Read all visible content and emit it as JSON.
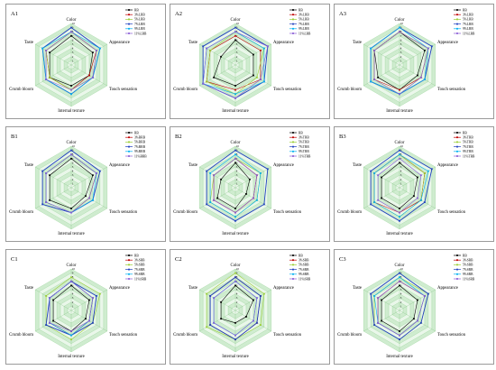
{
  "figure": {
    "axes": [
      "Color",
      "Appearance",
      "Touch sensation",
      "Internal texture",
      "Crumb bloom",
      "Taste"
    ],
    "ticks": [
      "1",
      "2",
      "3",
      "4",
      "5",
      "6",
      "7",
      "8",
      "9",
      "10"
    ],
    "series_colors": [
      "#000000",
      "#c00000",
      "#9acd32",
      "#1f3fbf",
      "#00b0f0",
      "#8a5cd6"
    ]
  },
  "chart_data": [
    {
      "type": "radar",
      "label": "A1",
      "r_range": [
        0,
        10
      ],
      "axes": [
        "Color",
        "Appearance",
        "Touch sensation",
        "Internal texture",
        "Crumb bloom",
        "Taste"
      ],
      "series": [
        {
          "name": "RB",
          "values": [
            7,
            6,
            5,
            5,
            6,
            6
          ]
        },
        {
          "name": "3%LRB",
          "values": [
            8,
            7,
            5,
            6,
            6,
            7
          ]
        },
        {
          "name": "5%LRB",
          "values": [
            8,
            7,
            6,
            6,
            6,
            7
          ]
        },
        {
          "name": "7%LRB",
          "values": [
            9,
            8,
            6,
            7,
            7,
            8
          ]
        },
        {
          "name": "9%LRB",
          "values": [
            8,
            8,
            6,
            7,
            7,
            8
          ]
        },
        {
          "name": "11%LRB",
          "values": [
            8,
            7,
            6,
            6,
            7,
            7
          ]
        }
      ]
    },
    {
      "type": "radar",
      "label": "A2",
      "r_range": [
        0,
        10
      ],
      "axes": [
        "Color",
        "Appearance",
        "Touch sensation",
        "Internal texture",
        "Crumb bloom",
        "Taste"
      ],
      "series": [
        {
          "name": "RB",
          "values": [
            6,
            5,
            5,
            5,
            6,
            4
          ]
        },
        {
          "name": "3%LRB",
          "values": [
            7,
            7,
            7,
            6,
            8,
            7
          ]
        },
        {
          "name": "5%LRB",
          "values": [
            8,
            8,
            6,
            7,
            8,
            7
          ]
        },
        {
          "name": "7%LRB",
          "values": [
            9,
            9,
            8,
            8,
            9,
            9
          ]
        },
        {
          "name": "9%LRB",
          "values": [
            8,
            8,
            8,
            7,
            9,
            8
          ]
        },
        {
          "name": "11%LRB",
          "values": [
            8,
            9,
            7,
            8,
            9,
            8
          ]
        }
      ]
    },
    {
      "type": "radar",
      "label": "A3",
      "r_range": [
        0,
        10
      ],
      "axes": [
        "Color",
        "Appearance",
        "Touch sensation",
        "Internal texture",
        "Crumb bloom",
        "Taste"
      ],
      "series": [
        {
          "name": "RB",
          "values": [
            8,
            7,
            5,
            6,
            6,
            7
          ]
        },
        {
          "name": "3%LRB",
          "values": [
            8,
            8,
            6,
            6,
            7,
            7
          ]
        },
        {
          "name": "5%LRB",
          "values": [
            8,
            8,
            6,
            7,
            7,
            7
          ]
        },
        {
          "name": "7%LRB",
          "values": [
            9,
            9,
            7,
            7,
            8,
            8
          ]
        },
        {
          "name": "9%LRB",
          "values": [
            9,
            8,
            7,
            7,
            8,
            8
          ]
        },
        {
          "name": "11%LRB",
          "values": [
            8,
            8,
            6,
            7,
            7,
            7
          ]
        }
      ]
    },
    {
      "type": "radar",
      "label": "B1",
      "r_range": [
        0,
        10
      ],
      "axes": [
        "Color",
        "Appearance",
        "Touch sensation",
        "Internal texture",
        "Crumb bloom",
        "Taste"
      ],
      "series": [
        {
          "name": "RB",
          "values": [
            7,
            6,
            4,
            5,
            6,
            6
          ]
        },
        {
          "name": "3%BRB",
          "values": [
            8,
            7,
            5,
            6,
            7,
            7
          ]
        },
        {
          "name": "5%BRB",
          "values": [
            8,
            7,
            5,
            6,
            7,
            7
          ]
        },
        {
          "name": "7%BRB",
          "values": [
            9,
            8,
            6,
            6,
            8,
            8
          ]
        },
        {
          "name": "9%BRB",
          "values": [
            8,
            7,
            6,
            6,
            7,
            7
          ]
        },
        {
          "name": "11%BRB",
          "values": [
            8,
            7,
            5,
            6,
            7,
            7
          ]
        }
      ]
    },
    {
      "type": "radar",
      "label": "B2",
      "r_range": [
        0,
        10
      ],
      "axes": [
        "Color",
        "Appearance",
        "Touch sensation",
        "Internal texture",
        "Crumb bloom",
        "Taste"
      ],
      "series": [
        {
          "name": "RB",
          "values": [
            6,
            4,
            3,
            5,
            5,
            4
          ]
        },
        {
          "name": "3%TRB",
          "values": [
            7,
            6,
            5,
            6,
            6,
            6
          ]
        },
        {
          "name": "5%TRB",
          "values": [
            7,
            7,
            6,
            7,
            7,
            6
          ]
        },
        {
          "name": "7%TRB",
          "values": [
            9,
            9,
            8,
            8,
            8,
            8
          ]
        },
        {
          "name": "9%TRB",
          "values": [
            8,
            7,
            6,
            7,
            7,
            7
          ]
        },
        {
          "name": "11%TRB",
          "values": [
            7,
            6,
            5,
            6,
            6,
            6
          ]
        }
      ]
    },
    {
      "type": "radar",
      "label": "B3",
      "r_range": [
        0,
        10
      ],
      "axes": [
        "Color",
        "Appearance",
        "Touch sensation",
        "Internal texture",
        "Crumb bloom",
        "Taste"
      ],
      "series": [
        {
          "name": "RB",
          "values": [
            6,
            5,
            4,
            5,
            5,
            5
          ]
        },
        {
          "name": "3%TRB",
          "values": [
            8,
            7,
            6,
            6,
            7,
            7
          ]
        },
        {
          "name": "5%TRB",
          "values": [
            8,
            7,
            6,
            7,
            7,
            7
          ]
        },
        {
          "name": "7%TRB",
          "values": [
            9,
            9,
            7,
            8,
            8,
            8
          ]
        },
        {
          "name": "9%TRB",
          "values": [
            8,
            8,
            6,
            7,
            7,
            7
          ]
        },
        {
          "name": "11%TRB",
          "values": [
            7,
            6,
            5,
            6,
            6,
            6
          ]
        }
      ]
    },
    {
      "type": "radar",
      "label": "C1",
      "r_range": [
        0,
        10
      ],
      "axes": [
        "Color",
        "Appearance",
        "Touch sensation",
        "Internal texture",
        "Crumb bloom",
        "Taste"
      ],
      "series": [
        {
          "name": "RB",
          "values": [
            6,
            5,
            4,
            5,
            5,
            5
          ]
        },
        {
          "name": "3%SRB",
          "values": [
            7,
            6,
            5,
            6,
            6,
            6
          ]
        },
        {
          "name": "5%SRB",
          "values": [
            8,
            8,
            6,
            7,
            7,
            7
          ]
        },
        {
          "name": "7%SRB",
          "values": [
            7,
            7,
            6,
            6,
            7,
            6
          ]
        },
        {
          "name": "9%SRB",
          "values": [
            7,
            6,
            5,
            6,
            6,
            6
          ]
        },
        {
          "name": "11%SRB",
          "values": [
            7,
            6,
            5,
            5,
            6,
            6
          ]
        }
      ]
    },
    {
      "type": "radar",
      "label": "C2",
      "r_range": [
        0,
        10
      ],
      "axes": [
        "Color",
        "Appearance",
        "Touch sensation",
        "Internal texture",
        "Crumb bloom",
        "Taste"
      ],
      "series": [
        {
          "name": "RB",
          "values": [
            6,
            5,
            3,
            3,
            4,
            4
          ]
        },
        {
          "name": "3%SRB",
          "values": [
            8,
            7,
            6,
            7,
            7,
            7
          ]
        },
        {
          "name": "5%SRB",
          "values": [
            9,
            8,
            7,
            7,
            8,
            8
          ]
        },
        {
          "name": "7%SRB",
          "values": [
            8,
            7,
            6,
            7,
            7,
            7
          ]
        },
        {
          "name": "9%SRB",
          "values": [
            7,
            6,
            5,
            6,
            6,
            6
          ]
        },
        {
          "name": "11%SRB",
          "values": [
            7,
            6,
            5,
            6,
            6,
            6
          ]
        }
      ]
    },
    {
      "type": "radar",
      "label": "C3",
      "r_range": [
        0,
        10
      ],
      "axes": [
        "Color",
        "Appearance",
        "Touch sensation",
        "Internal texture",
        "Crumb bloom",
        "Taste"
      ],
      "series": [
        {
          "name": "RB",
          "values": [
            6,
            5,
            4,
            5,
            5,
            5
          ]
        },
        {
          "name": "3%SRB",
          "values": [
            7,
            7,
            5,
            6,
            6,
            6
          ]
        },
        {
          "name": "5%SRB",
          "values": [
            8,
            8,
            6,
            7,
            7,
            7
          ]
        },
        {
          "name": "7%SRB",
          "values": [
            9,
            8,
            6,
            7,
            7,
            8
          ]
        },
        {
          "name": "9%SRB",
          "values": [
            8,
            7,
            5,
            6,
            6,
            7
          ]
        },
        {
          "name": "11%SRB",
          "values": [
            7,
            7,
            5,
            6,
            6,
            6
          ]
        }
      ]
    }
  ]
}
